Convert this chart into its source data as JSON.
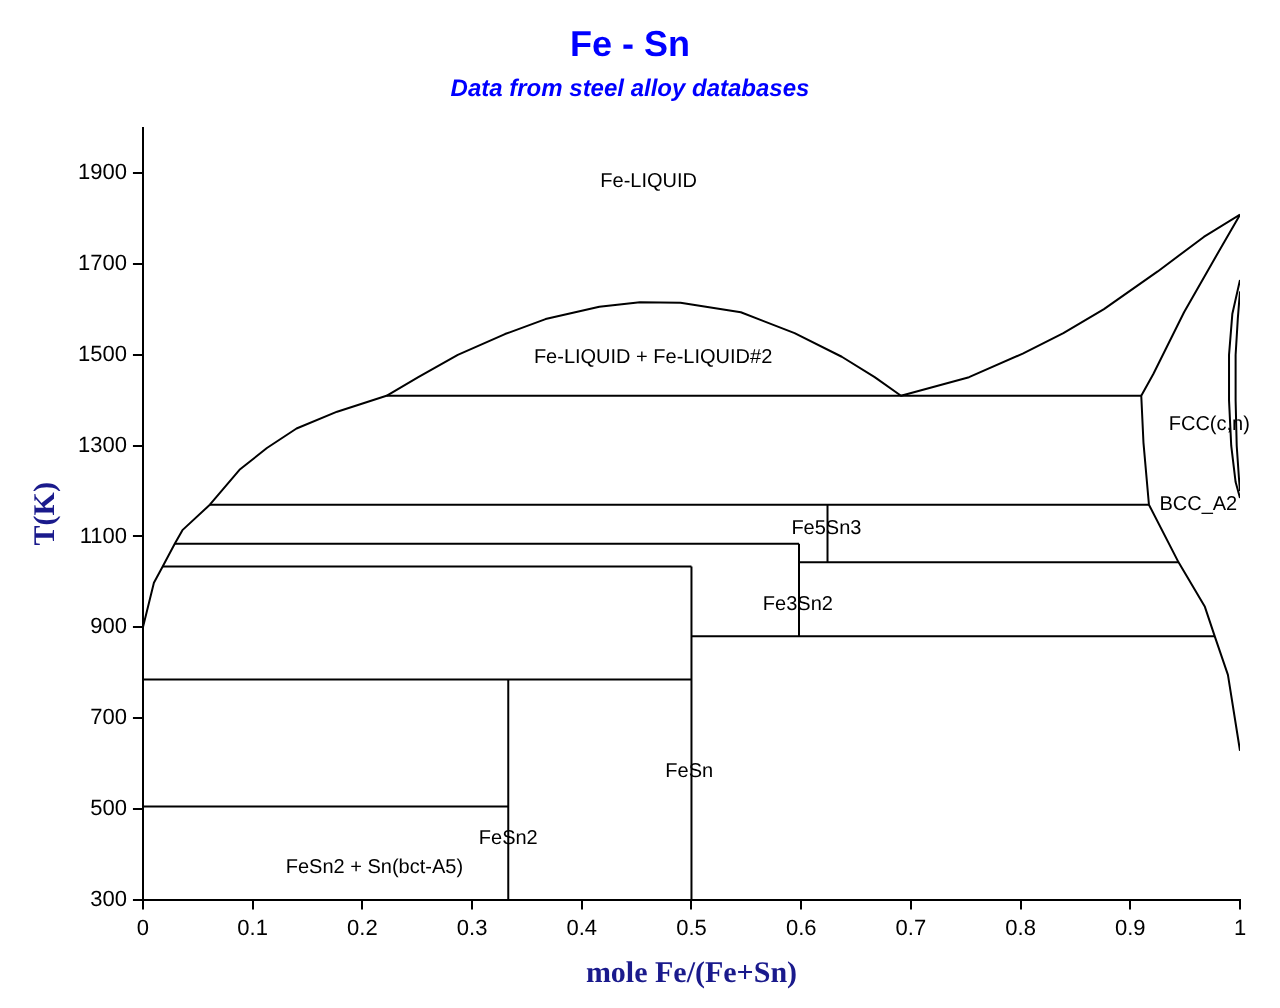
{
  "chart_data": {
    "type": "line",
    "title": "Fe - Sn",
    "subtitle": "Data from steel alloy databases",
    "xlabel": "mole Fe/(Fe+Sn)",
    "ylabel": "T(K)",
    "xlim": [
      0,
      1
    ],
    "xticks": [
      0,
      0.1,
      0.2,
      0.3,
      0.4,
      0.5,
      0.6,
      0.7,
      0.8,
      0.9,
      1
    ],
    "ylim": [
      300,
      2000
    ],
    "yticks": [
      300,
      500,
      700,
      900,
      1100,
      1300,
      1500,
      1700,
      1900
    ],
    "grid": false,
    "legend": false,
    "marker": "none",
    "line_style": "solid",
    "series": [
      {
        "color": "#000000",
        "x": [
          0,
          0,
          0.01,
          0.018,
          0.029,
          0.036,
          0.061,
          0.088,
          0.113,
          0.14,
          0.177,
          0.222,
          0.251,
          0.287,
          0.33,
          0.367,
          0.416,
          0.453,
          0.49,
          0.545,
          0.594,
          0.637,
          0.667,
          0.691,
          0.753,
          0.802,
          0.839,
          0.876,
          0.925,
          0.967,
          1
        ],
        "values": [
          795,
          900,
          998,
          1034,
          1084,
          1114,
          1170,
          1247,
          1295,
          1338,
          1375,
          1410,
          1451,
          1500,
          1546,
          1579,
          1606,
          1616,
          1615,
          1594,
          1548,
          1496,
          1451,
          1410,
          1451,
          1503,
          1548,
          1601,
          1684,
          1760,
          1809
        ]
      },
      {
        "color": "#000000",
        "x": [
          1,
          0.974,
          0.949,
          0.921,
          0.91,
          0.912,
          0.917,
          0.944,
          0.968,
          0.977,
          0.989,
          1
        ],
        "values": [
          1809,
          1700,
          1594,
          1458,
          1410,
          1307,
          1170,
          1043,
          945,
          880,
          795,
          628
        ]
      },
      {
        "color": "#000000",
        "x": [
          0.222,
          0.91
        ],
        "values": [
          1410,
          1410
        ]
      },
      {
        "color": "#000000",
        "x": [
          0.061,
          0.917
        ],
        "values": [
          1170,
          1170
        ]
      },
      {
        "color": "#000000",
        "x": [
          0.029,
          0.598
        ],
        "values": [
          1084,
          1084
        ]
      },
      {
        "color": "#000000",
        "x": [
          0.018,
          0.5
        ],
        "values": [
          1034,
          1034
        ]
      },
      {
        "color": "#000000",
        "x": [
          0.598,
          0.944
        ],
        "values": [
          1043,
          1043
        ]
      },
      {
        "color": "#000000",
        "x": [
          0.5,
          0.977
        ],
        "values": [
          880,
          880
        ]
      },
      {
        "color": "#000000",
        "x": [
          0,
          0.5
        ],
        "values": [
          785,
          785
        ]
      },
      {
        "color": "#000000",
        "x": [
          0,
          0.333
        ],
        "values": [
          505,
          505
        ]
      },
      {
        "color": "#000000",
        "x": [
          0.333,
          0.333
        ],
        "values": [
          300,
          785
        ]
      },
      {
        "color": "#000000",
        "x": [
          0.5,
          0.5
        ],
        "values": [
          300,
          1034
        ]
      },
      {
        "color": "#000000",
        "x": [
          0.598,
          0.598
        ],
        "values": [
          880,
          1084
        ]
      },
      {
        "color": "#000000",
        "x": [
          0.624,
          0.624
        ],
        "values": [
          1043,
          1170
        ]
      },
      {
        "color": "#000000",
        "x": [
          1,
          0.993,
          0.99,
          0.99,
          0.992,
          0.996,
          1
        ],
        "values": [
          1665,
          1590,
          1500,
          1400,
          1300,
          1220,
          1185
        ]
      },
      {
        "color": "#000000",
        "x": [
          1,
          0.998,
          0.996,
          0.996,
          0.997,
          0.999,
          1
        ],
        "values": [
          1640,
          1580,
          1500,
          1400,
          1300,
          1230,
          1200
        ]
      }
    ],
    "annotations": [
      "Fe-LIQUID",
      "Fe-LIQUID + Fe-LIQUID#2",
      {
        "text": "Fe5Sn3",
        "x": 0.623,
        "y": 1117
      },
      {
        "text": "Fe3Sn2",
        "x": 0.597,
        "y": 950
      },
      {
        "text": "FeSn",
        "x": 0.498,
        "y": 583
      },
      {
        "text": "FeSn2",
        "x": 0.333,
        "y": 434
      },
      "FeSn2 + Sn(bct-A5)",
      "FCC(c,n)",
      "BCC_A2"
    ]
  }
}
